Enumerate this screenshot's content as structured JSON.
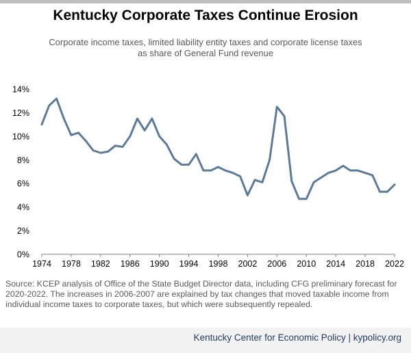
{
  "title": "Kentucky Corporate Taxes Continue Erosion",
  "subtitle_line1": "Corporate income taxes, limited liability entity taxes and corporate license taxes",
  "subtitle_line2": "as share of General Fund revenue",
  "source": "Source: KCEP analysis of Office of the State Budget Director data, including CFG preliminary forecast for 2020-2022. The increases in 2006-2007 are explained by tax changes that moved taxable income from individual income taxes to corporate taxes, but which were subsequently repealed.",
  "footer": "Kentucky Center for Economic Policy | kypolicy.org",
  "colors": {
    "line": "#5b7a9a",
    "axis": "#7f7f7f",
    "topbar": "#bfbfbf"
  },
  "chart_data": {
    "type": "line",
    "title": "Kentucky Corporate Taxes Continue Erosion",
    "subtitle": "Corporate income taxes, limited liability entity taxes and corporate license taxes as share of General Fund revenue",
    "xlabel": "",
    "ylabel": "",
    "xlim": [
      1974,
      2022
    ],
    "ylim": [
      0,
      14
    ],
    "grid": false,
    "legend": "none",
    "x_ticks": [
      "1974",
      "1978",
      "1982",
      "1986",
      "1990",
      "1994",
      "1998",
      "2002",
      "2006",
      "2010",
      "2014",
      "2018",
      "2022"
    ],
    "y_ticks": [
      "0%",
      "2%",
      "4%",
      "6%",
      "8%",
      "10%",
      "12%",
      "14%"
    ],
    "x": [
      1974,
      1975,
      1976,
      1977,
      1978,
      1979,
      1980,
      1981,
      1982,
      1983,
      1984,
      1985,
      1986,
      1987,
      1988,
      1989,
      1990,
      1991,
      1992,
      1993,
      1994,
      1995,
      1996,
      1997,
      1998,
      1999,
      2000,
      2001,
      2002,
      2003,
      2004,
      2005,
      2006,
      2007,
      2008,
      2009,
      2010,
      2011,
      2012,
      2013,
      2014,
      2015,
      2016,
      2017,
      2018,
      2019,
      2020,
      2021,
      2022
    ],
    "series": [
      {
        "values": [
          11.0,
          12.6,
          13.2,
          11.5,
          10.1,
          10.3,
          9.6,
          8.8,
          8.6,
          8.7,
          9.2,
          9.1,
          10.0,
          11.5,
          10.5,
          11.5,
          10.0,
          9.3,
          8.1,
          7.6,
          7.6,
          8.5,
          7.1,
          7.1,
          7.4,
          7.1,
          6.9,
          6.6,
          5.0,
          6.3,
          6.1,
          8.0,
          12.5,
          11.7,
          6.2,
          4.7,
          4.7,
          6.1,
          6.5,
          6.9,
          7.1,
          7.5,
          7.1,
          7.1,
          6.9,
          6.7,
          5.3,
          5.3,
          5.9
        ]
      }
    ]
  }
}
